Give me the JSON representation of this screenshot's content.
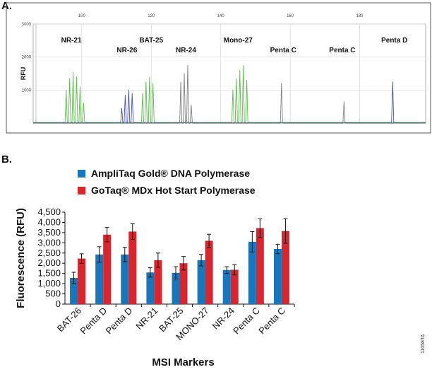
{
  "panel_a_label": "A.",
  "panel_b_label": "B.",
  "figure_code": "11058TA",
  "chart_data": [
    {
      "type": "line",
      "title": "",
      "ylabel": "RFU",
      "xlabel": "",
      "x_ticks": [
        100,
        120,
        140,
        160,
        180
      ],
      "y_ticks": [
        3000,
        2000,
        1000
      ],
      "xlim": [
        86,
        199
      ],
      "ylim": [
        0,
        3000
      ],
      "grid": true,
      "peak_labels": [
        {
          "label": "NR-21",
          "x": 97
        },
        {
          "label": "NR-26",
          "x": 113
        },
        {
          "label": "BAT-25",
          "x": 120
        },
        {
          "label": "NR-24",
          "x": 130
        },
        {
          "label": "Mono-27",
          "x": 145
        },
        {
          "label": "Penta C",
          "x": 158
        },
        {
          "label": "Penta C",
          "x": 175
        },
        {
          "label": "Penta D",
          "x": 190
        }
      ],
      "series": [
        {
          "color": "#5bbf4a",
          "peaks": [
            [
              95.5,
              1000
            ],
            [
              96.5,
              1350
            ],
            [
              97.5,
              1550
            ],
            [
              98.5,
              1400
            ],
            [
              99.5,
              1100
            ],
            [
              100.5,
              600
            ],
            [
              117.5,
              900
            ],
            [
              118.5,
              1250
            ],
            [
              119.5,
              1400
            ],
            [
              120.5,
              1200
            ],
            [
              143.5,
              1000
            ],
            [
              144.5,
              1350
            ],
            [
              145.5,
              1600
            ],
            [
              146.5,
              1750
            ],
            [
              147.5,
              1300
            ]
          ]
        },
        {
          "color": "#4a4fc0",
          "peaks": [
            [
              111.5,
              450
            ],
            [
              112.5,
              850
            ],
            [
              113.5,
              1000
            ],
            [
              114.5,
              900
            ],
            [
              189.5,
              1250
            ]
          ]
        },
        {
          "color": "#808080",
          "peaks": [
            [
              128.5,
              1250
            ],
            [
              129.5,
              1500
            ],
            [
              130.5,
              1750
            ],
            [
              131.5,
              550
            ],
            [
              157.5,
              1200
            ],
            [
              175.5,
              650
            ]
          ]
        }
      ]
    },
    {
      "type": "bar",
      "title": "",
      "xlabel": "MSI Markers",
      "ylabel": "Fluorescence (RFU)",
      "ylim": [
        0,
        4500
      ],
      "y_ticks": [
        "0",
        "500",
        "1,000",
        "1,500",
        "2,000",
        "2,500",
        "3,000",
        "3,500",
        "4,000",
        "4,500"
      ],
      "categories": [
        "BAT-26",
        "Penta D",
        "Penta D",
        "NR-21",
        "BAT-25",
        "MONO-27",
        "NR-24",
        "Penta C",
        "Penta C"
      ],
      "legend_position": "top-left",
      "series": [
        {
          "name": "AmpliTaq Gold® DNA Polymerase",
          "color": "#1777bd",
          "values": [
            1280,
            2430,
            2430,
            1550,
            1530,
            2150,
            1670,
            3050,
            2700
          ],
          "errors": [
            280,
            380,
            350,
            230,
            300,
            280,
            160,
            500,
            230
          ]
        },
        {
          "name": "GoTaq® MDx Hot Start Polymerase",
          "color": "#d9252e",
          "values": [
            2230,
            3400,
            3550,
            2150,
            2000,
            3100,
            1680,
            3720,
            3580
          ],
          "errors": [
            230,
            350,
            380,
            350,
            330,
            320,
            250,
            450,
            600
          ]
        }
      ]
    }
  ]
}
